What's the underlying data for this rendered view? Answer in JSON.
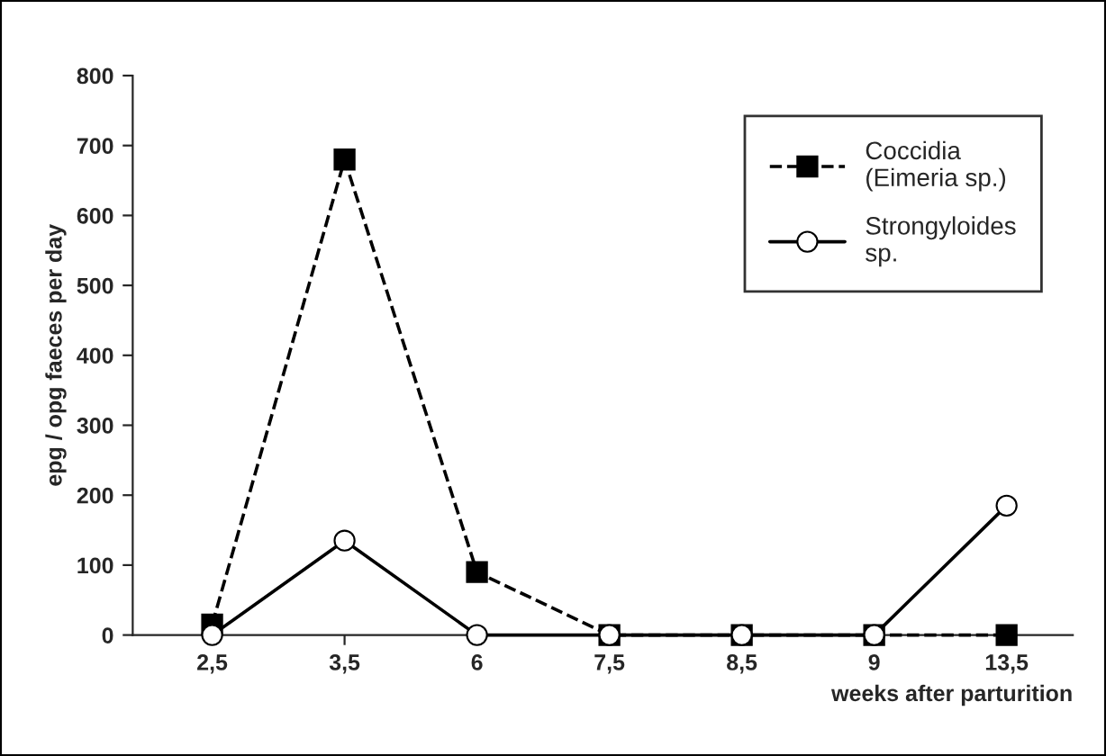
{
  "chart_data": {
    "type": "line",
    "ylabel": "epg / opg faeces per day",
    "xlabel": "weeks after parturition",
    "categories": [
      "2,5",
      "3,5",
      "6",
      "7,5",
      "8,5",
      "9",
      "13,5"
    ],
    "series": [
      {
        "name": "Coccidia\n(Eimeria sp.)",
        "color": "#000000",
        "marker": "square",
        "line_style": "dashed",
        "values": [
          15,
          680,
          90,
          0,
          0,
          0,
          0
        ]
      },
      {
        "name": "Strongyloides\nsp.",
        "color": "#000000",
        "marker": "circle",
        "line_style": "solid",
        "values": [
          0,
          135,
          0,
          0,
          0,
          0,
          185
        ]
      }
    ],
    "ylim": [
      0,
      800
    ],
    "yticks": [
      0,
      100,
      200,
      300,
      400,
      500,
      600,
      700,
      800
    ],
    "grid": false,
    "legend": "top right"
  }
}
